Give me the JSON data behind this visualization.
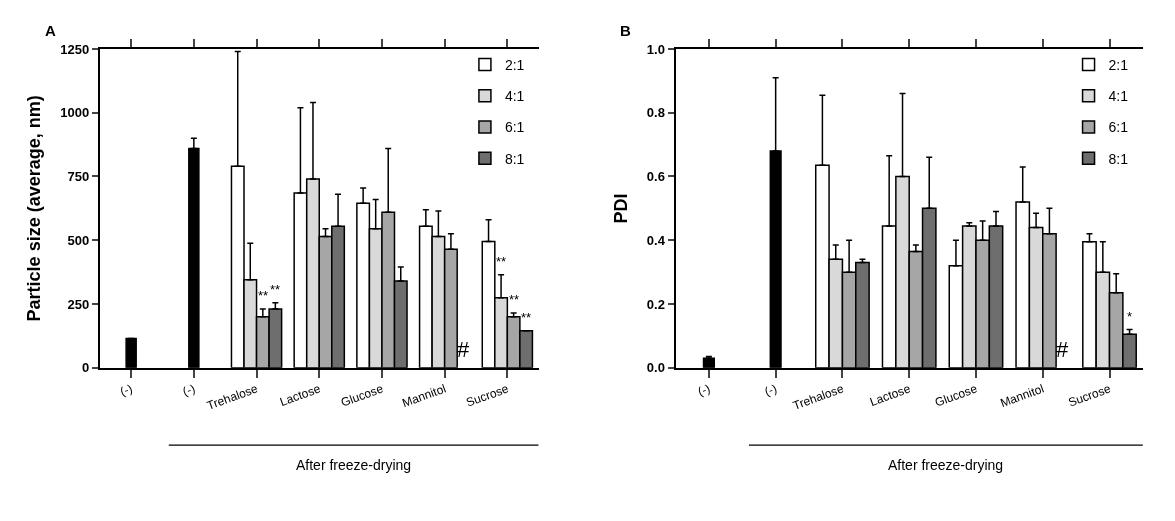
{
  "chart_data": [
    {
      "type": "bar",
      "title": "A",
      "categories": [
        "(-)",
        "(-)",
        "Trehalose",
        "Lactose",
        "Glucose",
        "Mannitol",
        "Sucrose"
      ],
      "ylabel": "Particle size (average, nm)",
      "ylim": [
        0,
        1250
      ],
      "yticks": [
        0,
        250,
        500,
        750,
        1000,
        1250
      ],
      "legend": "top right",
      "annotations": [
        "After freeze-drying"
      ],
      "series": [
        {
          "color": "#000000",
          "values": [
            115,
            860,
            null,
            null,
            null,
            null,
            null
          ],
          "errors": [
            null,
            40,
            null,
            null,
            null,
            null,
            null
          ]
        },
        {
          "name": "2:1",
          "color": "#ffffff",
          "values": [
            null,
            null,
            790,
            685,
            645,
            555,
            495
          ],
          "errors": [
            null,
            null,
            450,
            335,
            60,
            65,
            85
          ]
        },
        {
          "name": "4:1",
          "color": "#d9d9d9",
          "values": [
            null,
            null,
            345,
            740,
            545,
            515,
            275
          ],
          "errors": [
            null,
            null,
            143,
            300,
            115,
            100,
            90
          ],
          "value_labels": [
            null,
            null,
            null,
            null,
            null,
            null,
            "**"
          ]
        },
        {
          "name": "6:1",
          "color": "#a6a6a6",
          "values": [
            null,
            null,
            200,
            515,
            610,
            465,
            200
          ],
          "errors": [
            null,
            null,
            30,
            30,
            250,
            60,
            15
          ],
          "value_labels": [
            null,
            null,
            "**",
            null,
            null,
            null,
            "**"
          ]
        },
        {
          "name": "8:1",
          "color": "#6e6e6e",
          "values": [
            null,
            null,
            230,
            555,
            340,
            null,
            145
          ],
          "errors": [
            null,
            null,
            25,
            125,
            55,
            null,
            null
          ],
          "value_labels": [
            null,
            null,
            "**",
            null,
            null,
            "#",
            "**"
          ]
        }
      ]
    },
    {
      "type": "bar",
      "title": "B",
      "categories": [
        "(-)",
        "(-)",
        "Trehalose",
        "Lactose",
        "Glucose",
        "Mannitol",
        "Sucrose"
      ],
      "ylabel": "PDI",
      "ylim": [
        0,
        1.0
      ],
      "yticks": [
        {
          "value": 0,
          "label": "0.0"
        },
        0.2,
        0.4,
        0.6,
        0.8,
        {
          "value": 1,
          "label": "1.0"
        }
      ],
      "legend": "top right",
      "annotations": [
        "After freeze-drying"
      ],
      "series": [
        {
          "color": "#000000",
          "values": [
            0.03,
            0.68,
            null,
            null,
            null,
            null,
            null
          ],
          "errors": [
            0.005,
            0.23,
            null,
            null,
            null,
            null,
            null
          ]
        },
        {
          "name": "2:1",
          "color": "#ffffff",
          "values": [
            null,
            null,
            0.635,
            0.445,
            0.32,
            0.52,
            0.395
          ],
          "errors": [
            null,
            null,
            0.22,
            0.22,
            0.08,
            0.11,
            0.025
          ]
        },
        {
          "name": "4:1",
          "color": "#d9d9d9",
          "values": [
            null,
            null,
            0.34,
            0.6,
            0.445,
            0.44,
            0.3
          ],
          "errors": [
            null,
            null,
            0.045,
            0.26,
            0.01,
            0.045,
            0.095
          ]
        },
        {
          "name": "6:1",
          "color": "#a6a6a6",
          "values": [
            null,
            null,
            0.3,
            0.365,
            0.4,
            0.42,
            0.235
          ],
          "errors": [
            null,
            null,
            0.1,
            0.02,
            0.06,
            0.08,
            0.06
          ]
        },
        {
          "name": "8:1",
          "color": "#6e6e6e",
          "values": [
            null,
            null,
            0.33,
            0.5,
            0.445,
            null,
            0.105
          ],
          "errors": [
            null,
            null,
            0.01,
            0.16,
            0.045,
            null,
            0.015
          ],
          "value_labels": [
            null,
            null,
            null,
            null,
            null,
            "#",
            "*"
          ]
        }
      ]
    }
  ]
}
